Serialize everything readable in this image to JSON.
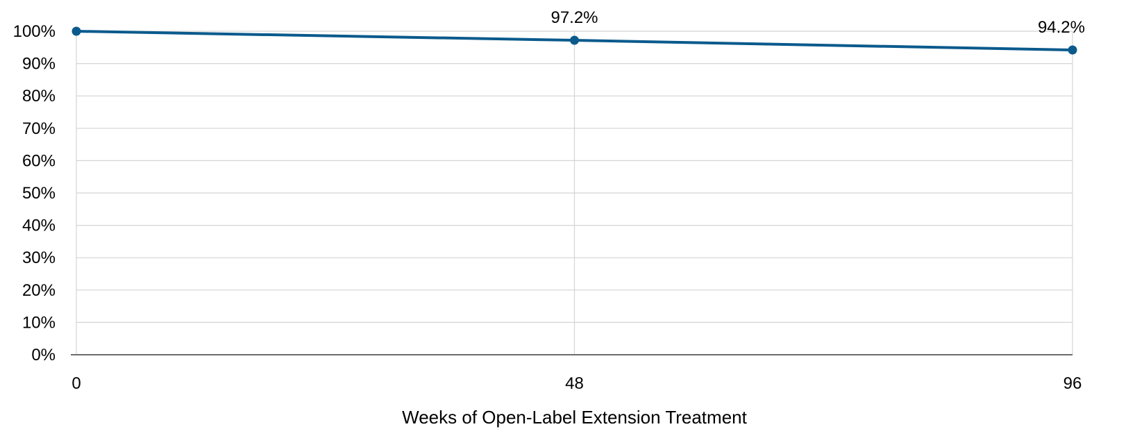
{
  "chart_data": {
    "type": "line",
    "title": "",
    "xlabel": "Weeks of Open-Label Extension Treatment",
    "ylabel": "",
    "x": [
      0,
      48,
      96
    ],
    "xlim": [
      0,
      96
    ],
    "ylim": [
      0,
      100
    ],
    "y_ticks": [
      0,
      10,
      20,
      30,
      40,
      50,
      60,
      70,
      80,
      90,
      100
    ],
    "y_tick_labels": [
      "0%",
      "10%",
      "20%",
      "30%",
      "40%",
      "50%",
      "60%",
      "70%",
      "80%",
      "90%",
      "100%"
    ],
    "x_tick_labels": [
      "0",
      "48",
      "96"
    ],
    "series": [
      {
        "values": [
          100,
          97.2,
          94.2
        ],
        "data_labels": [
          "",
          "97.2%",
          "94.2%"
        ],
        "color": "#0a5a8c"
      }
    ],
    "grid": true,
    "legend": "none",
    "colors": {
      "gridline": "#d4d4d4",
      "baseline": "#6b6b6b",
      "line": "#0a5a8c"
    }
  }
}
